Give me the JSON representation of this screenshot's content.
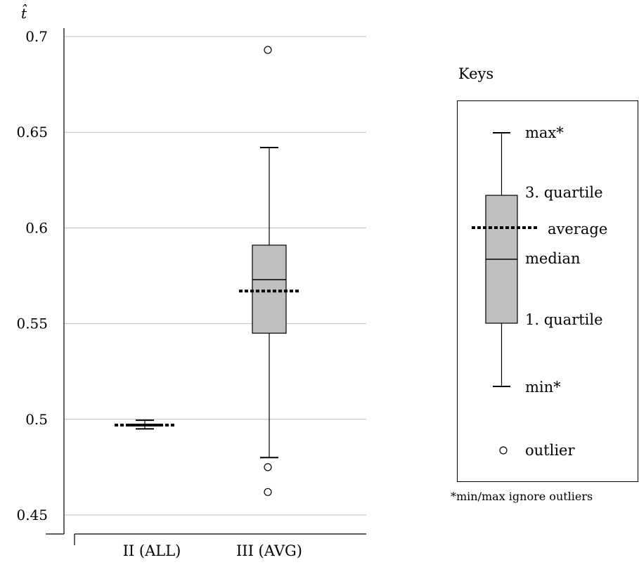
{
  "chart_data": {
    "type": "box",
    "ylabel": "t̂",
    "ylim": [
      0.45,
      0.7
    ],
    "y_ticks": [
      {
        "value": 0.45,
        "label": "0.45"
      },
      {
        "value": 0.5,
        "label": "0.5"
      },
      {
        "value": 0.55,
        "label": "0.55"
      },
      {
        "value": 0.6,
        "label": "0.6"
      },
      {
        "value": 0.65,
        "label": "0.65"
      },
      {
        "value": 0.7,
        "label": "0.7"
      }
    ],
    "grid": true,
    "categories": [
      "II (ALL)",
      "III (AVG)"
    ],
    "boxes": [
      {
        "category": "II (ALL)",
        "min": 0.495,
        "q1": 0.4965,
        "median": 0.497,
        "q3": 0.4975,
        "max": 0.4995,
        "average": 0.497,
        "outliers": []
      },
      {
        "category": "III (AVG)",
        "min": 0.48,
        "q1": 0.545,
        "median": 0.573,
        "q3": 0.591,
        "max": 0.642,
        "average": 0.567,
        "outliers": [
          0.693,
          0.475,
          0.462
        ]
      }
    ]
  },
  "legend": {
    "title": "Keys",
    "labels": {
      "max": "max*",
      "q3": "3. quartile",
      "average": "average",
      "median": "median",
      "q1": "1. quartile",
      "min": "min*",
      "outlier": "outlier"
    },
    "footnote": "*min/max ignore outliers"
  }
}
